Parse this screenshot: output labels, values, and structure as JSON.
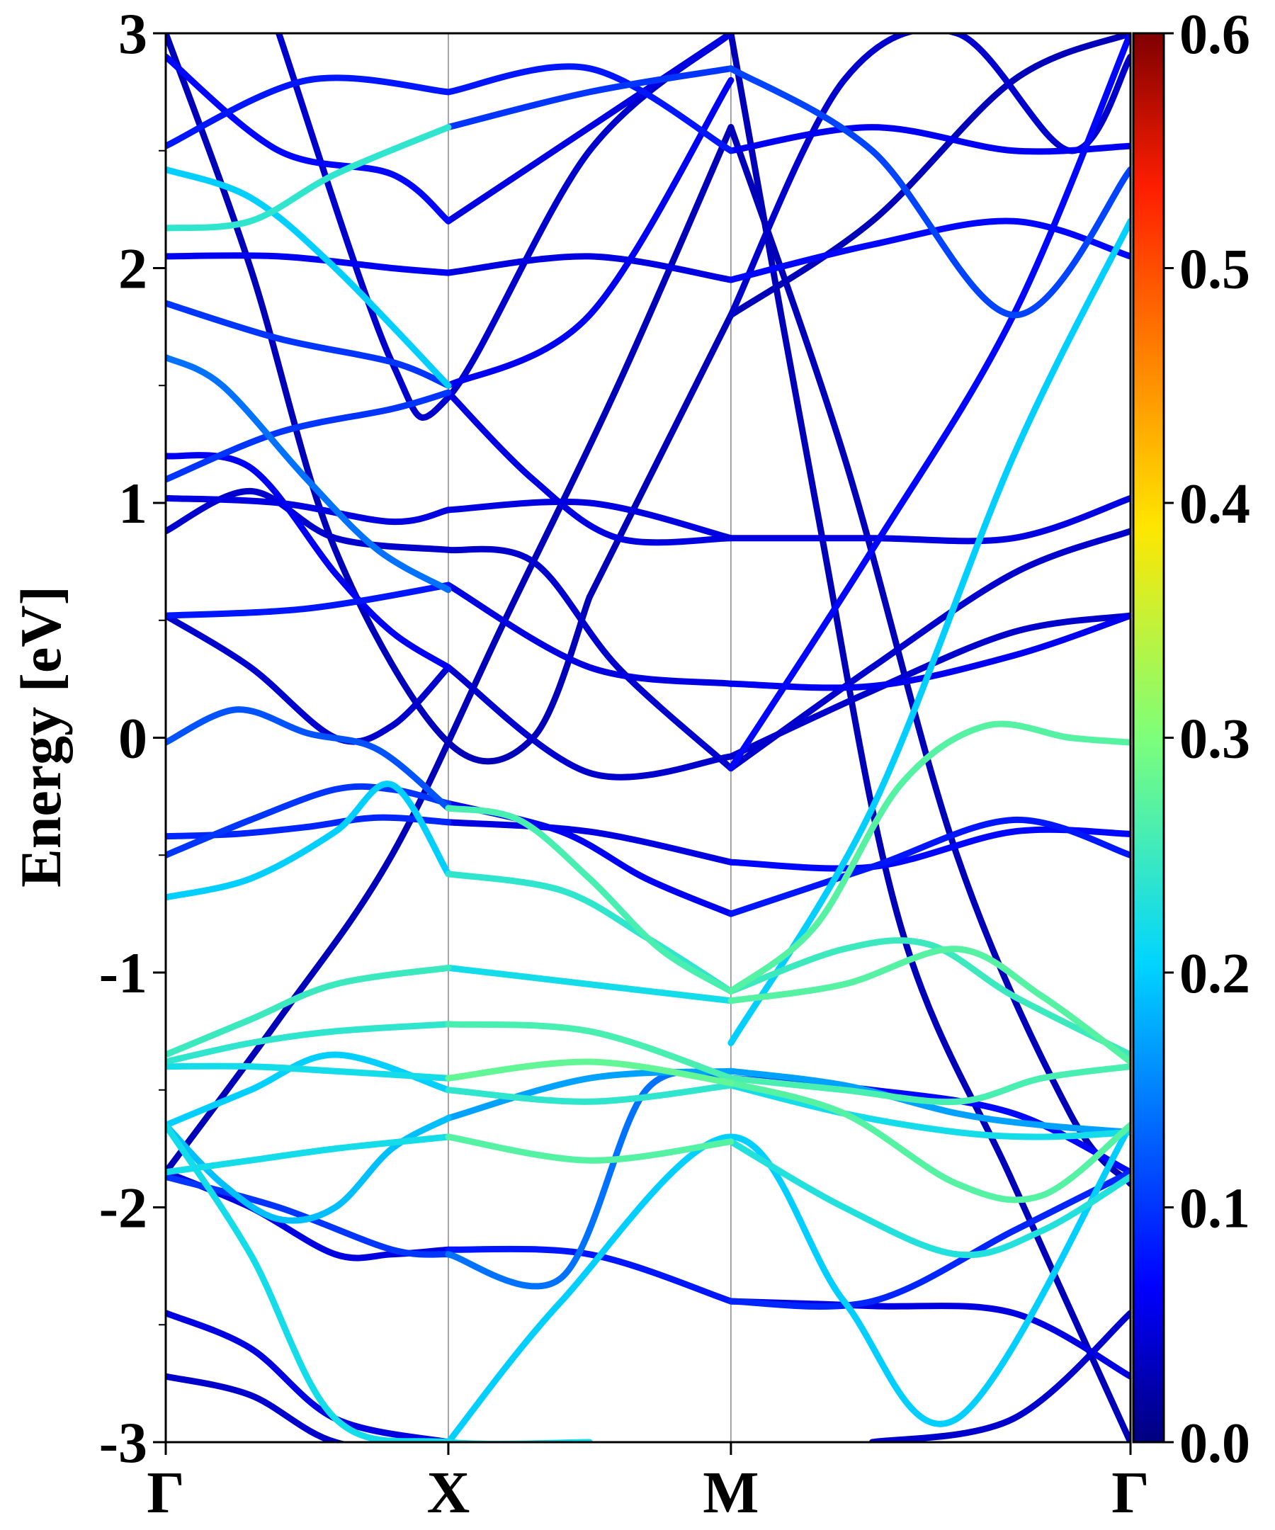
{
  "chart_data": {
    "type": "line",
    "title": "",
    "xlabel": "",
    "ylabel": "Energy [eV]",
    "ylim": [
      -3,
      3
    ],
    "x_kpoints": [
      {
        "label": "Γ",
        "x": 0.0
      },
      {
        "label": "X",
        "x": 1.0
      },
      {
        "label": "M",
        "x": 2.0
      },
      {
        "label": "Γ",
        "x": 3.414
      }
    ],
    "xlim": [
      0.0,
      3.414
    ],
    "y_ticks": [
      {
        "value": 3,
        "label": "3"
      },
      {
        "value": 2,
        "label": "2"
      },
      {
        "value": 1,
        "label": "1"
      },
      {
        "value": 0,
        "label": "0"
      },
      {
        "value": -1,
        "label": "-1"
      },
      {
        "value": -2,
        "label": "-2"
      },
      {
        "value": -3,
        "label": "-3"
      }
    ],
    "y_minor_ticks": [
      2.5,
      1.5,
      0.5,
      -0.5,
      -1.5,
      -2.5
    ],
    "grid": "vertical lines at high-symmetry k-points",
    "colorbar": {
      "colormap": "jet",
      "range": [
        0.0,
        0.6
      ],
      "ticks": [
        {
          "value": 0.6,
          "label": "0.6"
        },
        {
          "value": 0.5,
          "label": "0.5"
        },
        {
          "value": 0.4,
          "label": "0.4"
        },
        {
          "value": 0.3,
          "label": "0.3"
        },
        {
          "value": 0.2,
          "label": "0.2"
        },
        {
          "value": 0.1,
          "label": "0.1"
        },
        {
          "value": 0.0,
          "label": "0.0"
        }
      ]
    },
    "series": [
      {
        "x": [
          0,
          0.25,
          0.5,
          0.75,
          1.0
        ],
        "y": [
          -0.02,
          0.12,
          0.02,
          -0.05,
          -0.3
        ],
        "weight": 0.12
      },
      {
        "x": [
          1.0,
          1.25,
          1.5,
          1.75,
          2.0
        ],
        "y": [
          -0.3,
          -0.35,
          -0.6,
          -0.9,
          -1.08
        ],
        "weight": 0.26
      },
      {
        "x": [
          2.0,
          2.3,
          2.6,
          2.9,
          3.2,
          3.414
        ],
        "y": [
          -1.08,
          -0.8,
          -0.2,
          0.05,
          -0.0,
          -0.02
        ],
        "weight": 0.27
      },
      {
        "x": [
          0,
          0.25,
          0.5,
          0.75,
          1.0
        ],
        "y": [
          -0.42,
          -0.41,
          -0.38,
          -0.34,
          -0.36
        ],
        "weight": 0.09
      },
      {
        "x": [
          1.0,
          1.5,
          2.0
        ],
        "y": [
          -0.36,
          -0.4,
          -0.53
        ],
        "weight": 0.05
      },
      {
        "x": [
          2.0,
          2.5,
          3.0,
          3.414
        ],
        "y": [
          -0.53,
          -0.55,
          -0.4,
          -0.41
        ],
        "weight": 0.07
      },
      {
        "x": [
          0,
          0.3,
          0.6,
          0.8,
          1.0
        ],
        "y": [
          -0.5,
          -0.35,
          -0.22,
          -0.22,
          -0.28
        ],
        "weight": 0.1
      },
      {
        "x": [
          1.0,
          1.4,
          1.7,
          2.0
        ],
        "y": [
          -0.28,
          -0.4,
          -0.6,
          -0.75
        ],
        "weight": 0.06
      },
      {
        "x": [
          2.0,
          2.5,
          3.0,
          3.414
        ],
        "y": [
          -0.75,
          -0.55,
          -0.35,
          -0.5
        ],
        "weight": 0.08
      },
      {
        "x": [
          0,
          0.3,
          0.6,
          0.8,
          1.0
        ],
        "y": [
          -0.68,
          -0.6,
          -0.4,
          -0.2,
          -0.58
        ],
        "weight": 0.2
      },
      {
        "x": [
          1.0,
          1.4,
          1.7,
          2.0
        ],
        "y": [
          -0.58,
          -0.65,
          -0.85,
          -1.08
        ],
        "weight": 0.24
      },
      {
        "x": [
          2.0,
          2.4,
          2.7,
          3.0,
          3.414
        ],
        "y": [
          -1.08,
          -0.9,
          -0.88,
          -1.1,
          -1.35
        ],
        "weight": 0.25
      },
      {
        "x": [
          0,
          0.3,
          0.6,
          1.0
        ],
        "y": [
          -1.35,
          -1.2,
          -1.05,
          -0.98
        ],
        "weight": 0.25
      },
      {
        "x": [
          1.0,
          1.5,
          2.0
        ],
        "y": [
          -0.98,
          -1.05,
          -1.12
        ],
        "weight": 0.22
      },
      {
        "x": [
          2.0,
          2.4,
          2.8,
          3.1,
          3.414
        ],
        "y": [
          -1.12,
          -1.05,
          -0.9,
          -1.1,
          -1.38
        ],
        "weight": 0.27
      },
      {
        "x": [
          0,
          0.3,
          0.6,
          1.0
        ],
        "y": [
          -1.38,
          -1.3,
          -1.25,
          -1.22
        ],
        "weight": 0.24
      },
      {
        "x": [
          1.0,
          1.5,
          2.0
        ],
        "y": [
          -1.22,
          -1.25,
          -1.45
        ],
        "weight": 0.26
      },
      {
        "x": [
          2.0,
          2.4,
          2.8,
          3.1,
          3.414
        ],
        "y": [
          -1.45,
          -1.5,
          -1.55,
          -1.45,
          -1.4
        ],
        "weight": 0.26
      },
      {
        "x": [
          0,
          0.3,
          0.6,
          1.0
        ],
        "y": [
          -1.4,
          -1.4,
          -1.42,
          -1.45
        ],
        "weight": 0.22
      },
      {
        "x": [
          1.0,
          1.5,
          2.0
        ],
        "y": [
          -1.45,
          -1.38,
          -1.47
        ],
        "weight": 0.28
      },
      {
        "x": [
          2.0,
          2.4,
          2.8,
          3.1,
          3.414
        ],
        "y": [
          -1.47,
          -1.6,
          -1.9,
          -1.95,
          -1.65
        ],
        "weight": 0.27
      },
      {
        "x": [
          0,
          0.3,
          0.6,
          1.0
        ],
        "y": [
          -1.65,
          -1.5,
          -1.35,
          -1.5
        ],
        "weight": 0.2
      },
      {
        "x": [
          1.0,
          1.5,
          2.0
        ],
        "y": [
          -1.5,
          -1.55,
          -1.48
        ],
        "weight": 0.24
      },
      {
        "x": [
          2.0,
          2.4,
          2.8,
          3.1,
          3.414
        ],
        "y": [
          -1.48,
          -1.6,
          -1.68,
          -1.7,
          -1.68
        ],
        "weight": 0.22
      },
      {
        "x": [
          0,
          0.3,
          0.6,
          1.0
        ],
        "y": [
          -1.85,
          -1.8,
          -1.75,
          -1.7
        ],
        "weight": 0.22
      },
      {
        "x": [
          1.0,
          1.5,
          2.0
        ],
        "y": [
          -1.7,
          -1.8,
          -1.72
        ],
        "weight": 0.27
      },
      {
        "x": [
          2.0,
          2.4,
          2.8,
          3.1,
          3.414
        ],
        "y": [
          -1.72,
          -2.0,
          -2.2,
          -2.1,
          -1.87
        ],
        "weight": 0.23
      },
      {
        "x": [
          0,
          0.2,
          0.4,
          0.6,
          0.8,
          1.0
        ],
        "y": [
          -1.65,
          -1.9,
          -2.05,
          -2.0,
          -1.75,
          -1.62
        ],
        "weight": 0.19
      },
      {
        "x": [
          1.0,
          1.5,
          2.0
        ],
        "y": [
          -1.62,
          -1.45,
          -1.42
        ],
        "weight": 0.17
      },
      {
        "x": [
          2.0,
          2.4,
          2.8,
          3.1,
          3.414
        ],
        "y": [
          -1.42,
          -1.48,
          -1.6,
          -1.65,
          -1.68
        ],
        "weight": 0.17
      },
      {
        "x": [
          0,
          0.3,
          0.6,
          0.8,
          1.0
        ],
        "y": [
          -1.85,
          -2.0,
          -2.2,
          -2.2,
          -2.18
        ],
        "weight": 0.05
      },
      {
        "x": [
          1.0,
          1.5,
          2.0
        ],
        "y": [
          -2.18,
          -2.2,
          -2.4
        ],
        "weight": 0.08
      },
      {
        "x": [
          2.0,
          2.5,
          3.0,
          3.414
        ],
        "y": [
          -2.4,
          -2.4,
          -2.1,
          -1.85
        ],
        "weight": 0.09
      },
      {
        "x": [
          0,
          0.4,
          0.8,
          1.0
        ],
        "y": [
          -1.87,
          -2.0,
          -2.18,
          -2.2
        ],
        "weight": 0.1
      },
      {
        "x": [
          1.0,
          1.4,
          1.7,
          2.0
        ],
        "y": [
          -2.2,
          -2.3,
          -1.5,
          -1.45
        ],
        "weight": 0.14
      },
      {
        "x": [
          2.0,
          2.5,
          3.0,
          3.414
        ],
        "y": [
          -1.45,
          -1.5,
          -1.6,
          -1.85
        ],
        "weight": 0.07
      },
      {
        "x": [
          0,
          0.3,
          0.6,
          1.0
        ],
        "y": [
          -2.45,
          -2.6,
          -2.9,
          -3.0
        ],
        "weight": 0.05
      },
      {
        "x": [
          0,
          0.3,
          0.6,
          1.0
        ],
        "y": [
          -2.72,
          -2.8,
          -3.0,
          -3.05
        ],
        "weight": 0.04
      },
      {
        "x": [
          2.0,
          2.5,
          3.0,
          3.414
        ],
        "y": [
          -2.4,
          -2.42,
          -2.45,
          -2.72
        ],
        "weight": 0.05
      },
      {
        "x": [
          2.5,
          3.0,
          3.414
        ],
        "y": [
          -3.0,
          -2.9,
          -2.45
        ],
        "weight": 0.04
      },
      {
        "x": [
          1.0,
          1.4,
          2.0,
          2.4,
          2.8,
          3.414
        ],
        "y": [
          -3.0,
          -2.4,
          -1.7,
          -2.4,
          -2.9,
          -1.65
        ],
        "weight": 0.2
      },
      {
        "x": [
          0,
          0.3,
          0.6,
          1.0,
          1.5
        ],
        "y": [
          -1.65,
          -2.2,
          -2.9,
          -3.0,
          -3.0
        ],
        "weight": 0.22
      },
      {
        "x": [
          0,
          0.5,
          1.0
        ],
        "y": [
          0.52,
          0.55,
          0.65
        ],
        "weight": 0.08
      },
      {
        "x": [
          1.0,
          1.5,
          2.0
        ],
        "y": [
          0.65,
          0.3,
          0.23
        ],
        "weight": 0.05
      },
      {
        "x": [
          2.0,
          2.5,
          3.0,
          3.414
        ],
        "y": [
          0.23,
          0.22,
          0.35,
          0.52
        ],
        "weight": 0.06
      },
      {
        "x": [
          0,
          0.3,
          0.6,
          0.8,
          1.0
        ],
        "y": [
          0.52,
          0.3,
          0.0,
          0.05,
          0.3
        ],
        "weight": 0.04
      },
      {
        "x": [
          1.0,
          1.5,
          2.0
        ],
        "y": [
          0.3,
          -0.15,
          -0.08
        ],
        "weight": 0.04
      },
      {
        "x": [
          2.0,
          2.5,
          3.0,
          3.414
        ],
        "y": [
          -0.08,
          0.2,
          0.45,
          0.52
        ],
        "weight": 0.04
      },
      {
        "x": [
          0,
          0.3,
          0.6,
          1.0
        ],
        "y": [
          0.88,
          1.05,
          0.85,
          0.8
        ],
        "weight": 0.04
      },
      {
        "x": [
          1.0,
          1.3,
          1.6,
          2.0
        ],
        "y": [
          0.8,
          0.75,
          0.3,
          -0.13
        ],
        "weight": 0.04
      },
      {
        "x": [
          2.0,
          2.5,
          3.0,
          3.414
        ],
        "y": [
          -0.13,
          0.3,
          0.7,
          0.88
        ],
        "weight": 0.04
      },
      {
        "x": [
          0,
          0.4,
          0.8,
          1.0
        ],
        "y": [
          1.02,
          1.0,
          0.92,
          0.97
        ],
        "weight": 0.05
      },
      {
        "x": [
          1.0,
          1.5,
          2.0
        ],
        "y": [
          0.97,
          1.0,
          0.85
        ],
        "weight": 0.05
      },
      {
        "x": [
          2.0,
          2.5,
          3.0,
          3.414
        ],
        "y": [
          0.85,
          0.85,
          0.85,
          1.02
        ],
        "weight": 0.05
      },
      {
        "x": [
          0,
          0.4,
          0.8,
          1.0
        ],
        "y": [
          1.1,
          1.3,
          1.4,
          1.47
        ],
        "weight": 0.1
      },
      {
        "x": [
          1.0,
          1.3,
          1.6,
          2.0
        ],
        "y": [
          1.47,
          1.1,
          0.85,
          0.85
        ],
        "weight": 0.05
      },
      {
        "x": [
          0,
          0.2,
          0.5,
          0.75,
          1.0
        ],
        "y": [
          1.62,
          1.5,
          1.1,
          0.8,
          0.63
        ],
        "weight": 0.14
      },
      {
        "x": [
          0,
          0.3,
          0.6,
          0.8,
          1.0
        ],
        "y": [
          1.2,
          1.15,
          0.7,
          0.45,
          0.3
        ],
        "weight": 0.06
      },
      {
        "x": [
          0,
          0.4,
          0.8,
          1.0
        ],
        "y": [
          1.85,
          1.7,
          1.6,
          1.5
        ],
        "weight": 0.1
      },
      {
        "x": [
          1.0,
          1.5,
          2.0
        ],
        "y": [
          1.5,
          1.8,
          2.8
        ],
        "weight": 0.06
      },
      {
        "x": [
          0,
          0.4,
          0.8,
          1.0
        ],
        "y": [
          2.05,
          2.05,
          2.0,
          1.98
        ],
        "weight": 0.06
      },
      {
        "x": [
          1.0,
          1.5,
          2.0
        ],
        "y": [
          1.98,
          2.05,
          1.95
        ],
        "weight": 0.05
      },
      {
        "x": [
          2.0,
          2.5,
          3.0,
          3.414
        ],
        "y": [
          1.95,
          2.1,
          2.2,
          2.05
        ],
        "weight": 0.07
      },
      {
        "x": [
          0,
          0.3,
          0.6,
          1.0
        ],
        "y": [
          2.42,
          2.3,
          2.0,
          1.5
        ],
        "weight": 0.2
      },
      {
        "x": [
          0,
          0.3,
          0.6,
          1.0
        ],
        "y": [
          2.17,
          2.2,
          2.4,
          2.6
        ],
        "weight": 0.24
      },
      {
        "x": [
          1.0,
          1.5,
          2.0
        ],
        "y": [
          2.6,
          2.75,
          2.85
        ],
        "weight": 0.1
      },
      {
        "x": [
          2.0,
          2.5,
          3.0,
          3.414
        ],
        "y": [
          2.85,
          2.5,
          1.8,
          2.42
        ],
        "weight": 0.11
      },
      {
        "x": [
          0,
          0.4,
          0.8,
          1.0
        ],
        "y": [
          2.9,
          2.5,
          2.4,
          2.2
        ],
        "weight": 0.07
      },
      {
        "x": [
          1.0,
          1.5,
          2.0
        ],
        "y": [
          2.2,
          2.6,
          3.0
        ],
        "weight": 0.05
      },
      {
        "x": [
          0,
          0.5,
          1.0
        ],
        "y": [
          2.52,
          2.8,
          2.75
        ],
        "weight": 0.08
      },
      {
        "x": [
          1.0,
          1.5,
          2.0
        ],
        "y": [
          2.75,
          2.85,
          2.5
        ],
        "weight": 0.08
      },
      {
        "x": [
          2.0,
          2.5,
          3.0,
          3.414
        ],
        "y": [
          2.5,
          2.6,
          2.5,
          2.52
        ],
        "weight": 0.06
      },
      {
        "x": [
          0,
          0.3,
          0.6,
          1.0,
          1.3,
          1.5
        ],
        "y": [
          3.0,
          2.0,
          0.8,
          -0.02,
          0.0,
          0.6
        ],
        "weight": 0.03
      },
      {
        "x": [
          1.5,
          2.0
        ],
        "y": [
          0.6,
          1.8
        ],
        "weight": 0.03
      },
      {
        "x": [
          2.0,
          2.5,
          3.0,
          3.414
        ],
        "y": [
          1.8,
          2.2,
          2.8,
          3.0
        ],
        "weight": 0.03
      },
      {
        "x": [
          0.4,
          0.8,
          1.0,
          1.5,
          2.0
        ],
        "y": [
          3.0,
          1.6,
          1.45,
          2.5,
          3.0
        ],
        "weight": 0.04
      },
      {
        "x": [
          0,
          0.4,
          0.8,
          1.2,
          1.6,
          2.0
        ],
        "y": [
          -1.85,
          -1.2,
          -0.5,
          0.5,
          1.5,
          2.6
        ],
        "weight": 0.03
      },
      {
        "x": [
          2.0,
          2.4,
          2.8,
          3.2,
          3.414
        ],
        "y": [
          2.6,
          1.2,
          -0.5,
          -1.6,
          -1.9
        ],
        "weight": 0.03
      },
      {
        "x": [
          2.0,
          2.3,
          2.6,
          3.0,
          3.414
        ],
        "y": [
          3.0,
          1.0,
          -0.8,
          -1.9,
          -3.0
        ],
        "weight": 0.03
      },
      {
        "x": [
          2.0,
          2.4,
          2.8,
          3.2,
          3.414
        ],
        "y": [
          1.8,
          2.8,
          3.0,
          2.5,
          2.9
        ],
        "weight": 0.04
      },
      {
        "x": [
          2.0,
          2.5,
          3.0,
          3.414
        ],
        "y": [
          -0.13,
          0.8,
          1.8,
          3.0
        ],
        "weight": 0.07
      },
      {
        "x": [
          2.0,
          2.5,
          3.0,
          3.414
        ],
        "y": [
          -1.3,
          -0.3,
          1.2,
          2.2
        ],
        "weight": 0.2
      }
    ]
  }
}
